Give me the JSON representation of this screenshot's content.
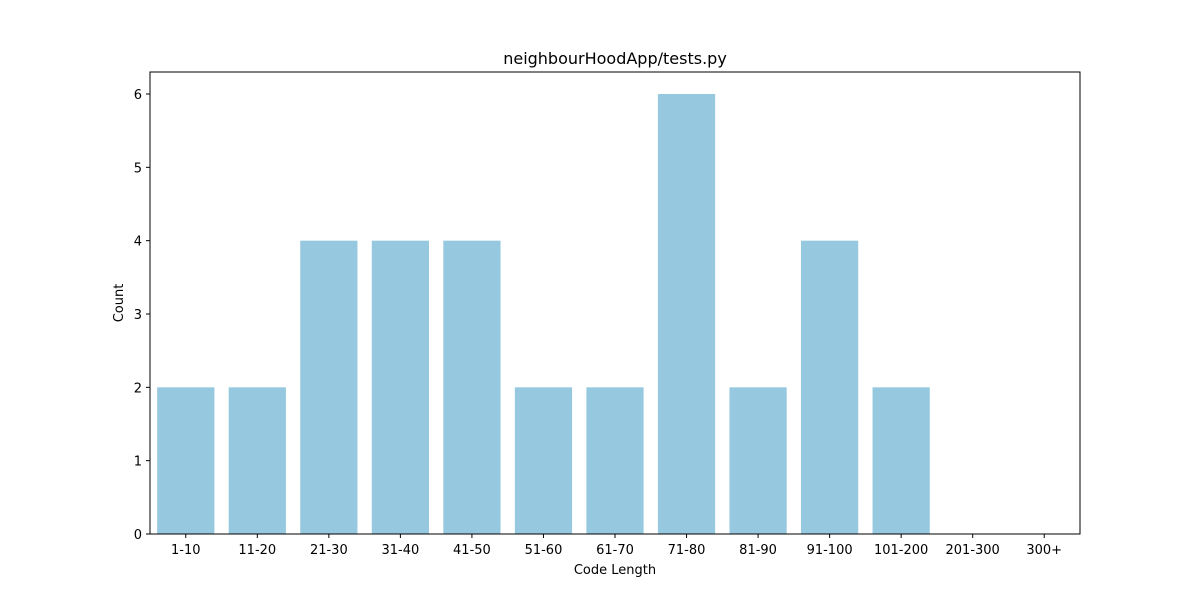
{
  "chart_data": {
    "type": "bar",
    "title": "neighbourHoodApp/tests.py",
    "xlabel": "Code Length",
    "ylabel": "Count",
    "categories": [
      "1-10",
      "11-20",
      "21-30",
      "31-40",
      "41-50",
      "51-60",
      "61-70",
      "71-80",
      "81-90",
      "91-100",
      "101-200",
      "201-300",
      "300+"
    ],
    "values": [
      2,
      2,
      4,
      4,
      4,
      2,
      2,
      6,
      2,
      4,
      2,
      0,
      0
    ],
    "ylim": [
      0,
      6.3
    ],
    "yticks": [
      0,
      1,
      2,
      3,
      4,
      5,
      6
    ],
    "bar_color": "#96c9df",
    "grid": false,
    "legend": "none"
  }
}
